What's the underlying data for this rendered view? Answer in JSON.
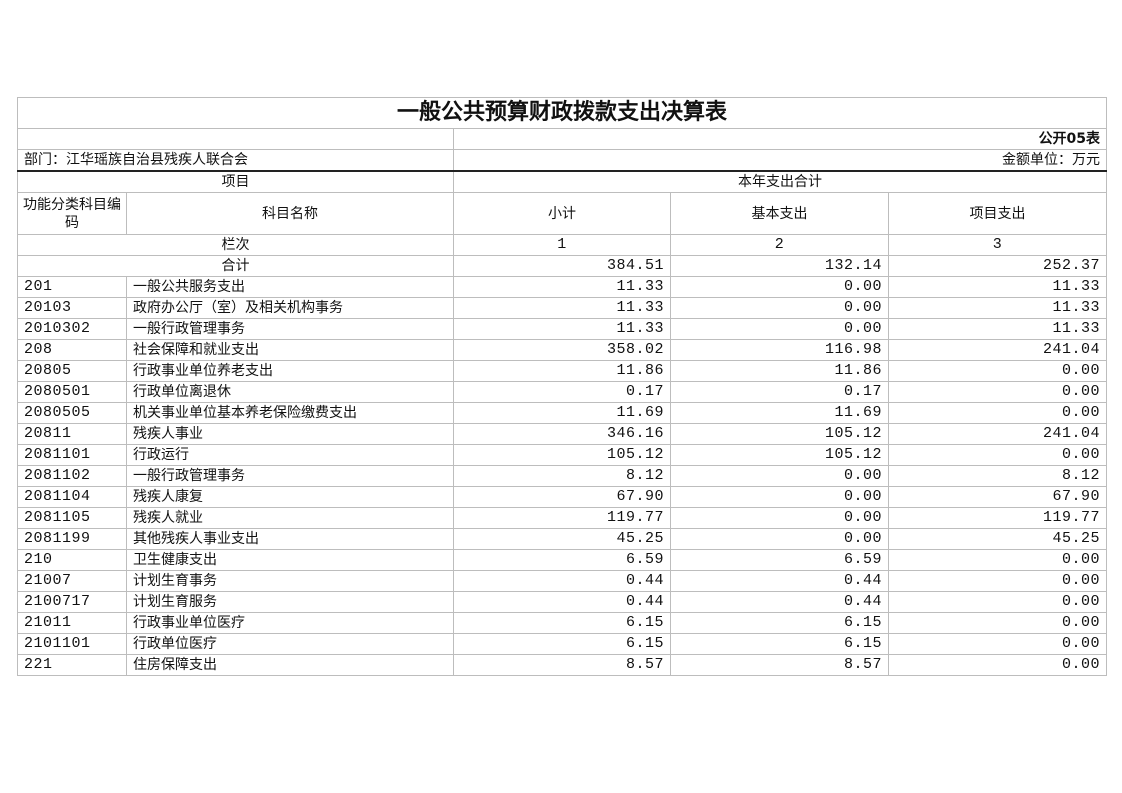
{
  "title": "一般公共预算财政拨款支出决算表",
  "form_no": "公开05表",
  "department": "部门：江华瑶族自治县残疾人联合会",
  "unit": "金额单位：万元",
  "headers": {
    "item": "项目",
    "total_group": "本年支出合计",
    "code": "功能分类科目编码",
    "name": "科目名称",
    "subtotal": "小计",
    "basic": "基本支出",
    "project": "项目支出",
    "column_index_label": "栏次",
    "col1": "1",
    "col2": "2",
    "col3": "3"
  },
  "total_row": {
    "label": "合计",
    "subtotal": "384.51",
    "basic": "132.14",
    "project": "252.37"
  },
  "rows": [
    {
      "code": "201",
      "name": "一般公共服务支出",
      "subtotal": "11.33",
      "basic": "0.00",
      "project": "11.33"
    },
    {
      "code": "20103",
      "name": "政府办公厅（室）及相关机构事务",
      "subtotal": "11.33",
      "basic": "0.00",
      "project": "11.33"
    },
    {
      "code": "2010302",
      "name": "一般行政管理事务",
      "subtotal": "11.33",
      "basic": "0.00",
      "project": "11.33"
    },
    {
      "code": "208",
      "name": "社会保障和就业支出",
      "subtotal": "358.02",
      "basic": "116.98",
      "project": "241.04"
    },
    {
      "code": "20805",
      "name": "行政事业单位养老支出",
      "subtotal": "11.86",
      "basic": "11.86",
      "project": "0.00"
    },
    {
      "code": "2080501",
      "name": "行政单位离退休",
      "subtotal": "0.17",
      "basic": "0.17",
      "project": "0.00"
    },
    {
      "code": "2080505",
      "name": "机关事业单位基本养老保险缴费支出",
      "subtotal": "11.69",
      "basic": "11.69",
      "project": "0.00"
    },
    {
      "code": "20811",
      "name": "残疾人事业",
      "subtotal": "346.16",
      "basic": "105.12",
      "project": "241.04"
    },
    {
      "code": "2081101",
      "name": "行政运行",
      "subtotal": "105.12",
      "basic": "105.12",
      "project": "0.00"
    },
    {
      "code": "2081102",
      "name": "一般行政管理事务",
      "subtotal": "8.12",
      "basic": "0.00",
      "project": "8.12"
    },
    {
      "code": "2081104",
      "name": "残疾人康复",
      "subtotal": "67.90",
      "basic": "0.00",
      "project": "67.90"
    },
    {
      "code": "2081105",
      "name": "残疾人就业",
      "subtotal": "119.77",
      "basic": "0.00",
      "project": "119.77"
    },
    {
      "code": "2081199",
      "name": "其他残疾人事业支出",
      "subtotal": "45.25",
      "basic": "0.00",
      "project": "45.25"
    },
    {
      "code": "210",
      "name": "卫生健康支出",
      "subtotal": "6.59",
      "basic": "6.59",
      "project": "0.00"
    },
    {
      "code": "21007",
      "name": "计划生育事务",
      "subtotal": "0.44",
      "basic": "0.44",
      "project": "0.00"
    },
    {
      "code": "2100717",
      "name": "计划生育服务",
      "subtotal": "0.44",
      "basic": "0.44",
      "project": "0.00"
    },
    {
      "code": "21011",
      "name": "行政事业单位医疗",
      "subtotal": "6.15",
      "basic": "6.15",
      "project": "0.00"
    },
    {
      "code": "2101101",
      "name": "行政单位医疗",
      "subtotal": "6.15",
      "basic": "6.15",
      "project": "0.00"
    },
    {
      "code": "221",
      "name": "住房保障支出",
      "subtotal": "8.57",
      "basic": "8.57",
      "project": "0.00"
    }
  ]
}
